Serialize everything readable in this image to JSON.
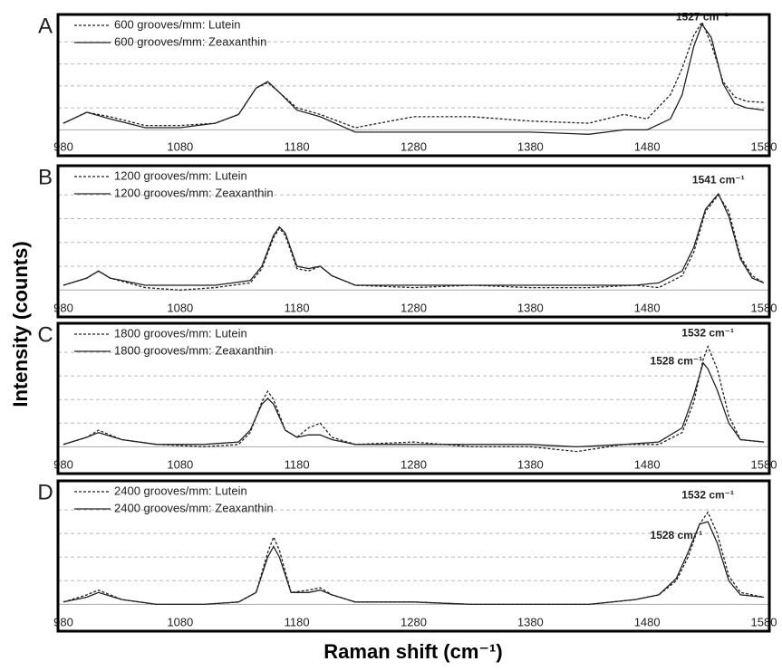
{
  "ylabel": "Intensity (counts)",
  "xlabel": "Raman shift (cm⁻¹)",
  "chart_data": [
    {
      "type": "line",
      "panel": "A",
      "xlim": [
        980,
        1580
      ],
      "ylim": [
        -0.6,
        5
      ],
      "xticks": [
        980,
        1080,
        1180,
        1280,
        1380,
        1480,
        1580
      ],
      "ygrid": [
        1,
        2,
        3,
        4
      ],
      "x": [
        980,
        1000,
        1020,
        1050,
        1080,
        1110,
        1130,
        1145,
        1155,
        1165,
        1180,
        1200,
        1230,
        1280,
        1330,
        1380,
        1430,
        1460,
        1480,
        1500,
        1510,
        1520,
        1527,
        1535,
        1545,
        1555,
        1565,
        1580
      ],
      "series": [
        {
          "name": "600 grooves/mm: Lutein",
          "color": "#222",
          "dash": true,
          "values": [
            0.3,
            0.8,
            0.6,
            0.2,
            0.2,
            0.3,
            0.7,
            1.9,
            2.15,
            1.7,
            1.0,
            0.7,
            0.1,
            0.6,
            0.6,
            0.4,
            0.3,
            0.7,
            0.5,
            1.6,
            2.8,
            4.3,
            4.9,
            3.9,
            2.2,
            1.5,
            1.3,
            1.25
          ]
        },
        {
          "name": "600 grooves/mm: Zeaxanthin",
          "color": "#222",
          "dash": false,
          "values": [
            0.3,
            0.8,
            0.5,
            0.1,
            0.1,
            0.3,
            0.7,
            1.9,
            2.2,
            1.7,
            0.9,
            0.6,
            -0.1,
            -0.1,
            -0.1,
            -0.1,
            -0.2,
            0.0,
            0.0,
            0.5,
            1.6,
            3.8,
            4.8,
            4.2,
            2.1,
            1.2,
            1.0,
            0.9
          ]
        }
      ],
      "annotations": [
        {
          "text": "1527 cm⁻¹",
          "x": 1527,
          "y": 5.1
        }
      ]
    },
    {
      "type": "line",
      "panel": "B",
      "xlim": [
        980,
        1580
      ],
      "ylim": [
        -0.6,
        5
      ],
      "xticks": [
        980,
        1080,
        1180,
        1280,
        1380,
        1480,
        1580
      ],
      "ygrid": [
        1,
        2,
        3,
        4
      ],
      "x": [
        980,
        1000,
        1010,
        1020,
        1050,
        1080,
        1110,
        1140,
        1150,
        1160,
        1165,
        1170,
        1180,
        1190,
        1200,
        1210,
        1230,
        1280,
        1330,
        1380,
        1430,
        1470,
        1490,
        1510,
        1520,
        1530,
        1541,
        1550,
        1560,
        1570,
        1580
      ],
      "series": [
        {
          "name": "1200 grooves/mm: Lutein",
          "color": "#222",
          "dash": true,
          "values": [
            0.2,
            0.5,
            0.8,
            0.5,
            0.1,
            0.0,
            0.1,
            0.3,
            0.9,
            2.2,
            2.6,
            2.3,
            0.9,
            0.8,
            1.0,
            0.6,
            0.2,
            0.1,
            0.2,
            0.1,
            0.1,
            0.2,
            0.1,
            0.6,
            1.6,
            3.3,
            4.0,
            3.3,
            1.4,
            0.6,
            0.3
          ]
        },
        {
          "name": "1200 grooves/mm: Zeaxanthin",
          "color": "#222",
          "dash": false,
          "values": [
            0.2,
            0.5,
            0.8,
            0.5,
            0.2,
            0.2,
            0.2,
            0.4,
            1.0,
            2.3,
            2.65,
            2.4,
            1.0,
            0.9,
            1.0,
            0.6,
            0.2,
            0.2,
            0.2,
            0.2,
            0.2,
            0.2,
            0.3,
            0.8,
            1.8,
            3.4,
            4.05,
            3.1,
            1.3,
            0.5,
            0.3
          ]
        }
      ],
      "annotations": [
        {
          "text": "1541 cm⁻¹",
          "x": 1541,
          "y": 4.6
        }
      ]
    },
    {
      "type": "line",
      "panel": "C",
      "xlim": [
        980,
        1580
      ],
      "ylim": [
        -0.6,
        5
      ],
      "xticks": [
        980,
        1080,
        1180,
        1280,
        1380,
        1480,
        1580
      ],
      "ygrid": [
        1,
        2,
        3,
        4
      ],
      "x": [
        980,
        1000,
        1010,
        1030,
        1060,
        1100,
        1130,
        1140,
        1150,
        1155,
        1160,
        1170,
        1180,
        1190,
        1200,
        1210,
        1230,
        1280,
        1330,
        1380,
        1420,
        1460,
        1490,
        1510,
        1520,
        1528,
        1532,
        1540,
        1550,
        1560,
        1580
      ],
      "series": [
        {
          "name": "1800 grooves/mm: Lutein",
          "color": "#222",
          "dash": true,
          "values": [
            0.1,
            0.4,
            0.7,
            0.3,
            0.1,
            0.0,
            0.1,
            0.6,
            1.9,
            2.35,
            2.0,
            0.7,
            0.4,
            0.8,
            1.0,
            0.4,
            0.1,
            0.2,
            0.0,
            0.0,
            -0.2,
            0.1,
            0.1,
            0.6,
            1.9,
            3.7,
            4.25,
            3.3,
            1.3,
            0.3,
            0.2
          ]
        },
        {
          "name": "1800 grooves/mm: Zeaxanthin",
          "color": "#222",
          "dash": false,
          "values": [
            0.1,
            0.4,
            0.6,
            0.3,
            0.1,
            0.1,
            0.2,
            0.7,
            1.8,
            2.05,
            1.8,
            0.7,
            0.4,
            0.5,
            0.5,
            0.3,
            0.1,
            0.1,
            0.1,
            0.1,
            0.0,
            0.1,
            0.2,
            0.8,
            2.2,
            3.55,
            3.3,
            2.4,
            1.0,
            0.3,
            0.2
          ]
        }
      ],
      "annotations": [
        {
          "text": "1532 cm⁻¹",
          "x": 1532,
          "y": 4.8
        },
        {
          "text": "1528 cm⁻¹",
          "x": 1505,
          "y": 3.6
        }
      ]
    },
    {
      "type": "line",
      "panel": "D",
      "xlim": [
        980,
        1580
      ],
      "ylim": [
        -0.6,
        5
      ],
      "xticks": [
        980,
        1080,
        1180,
        1280,
        1380,
        1480,
        1580
      ],
      "ygrid": [
        1,
        2,
        3,
        4
      ],
      "x": [
        980,
        1000,
        1010,
        1030,
        1060,
        1100,
        1130,
        1145,
        1155,
        1160,
        1165,
        1175,
        1190,
        1200,
        1210,
        1230,
        1280,
        1330,
        1380,
        1430,
        1470,
        1490,
        1505,
        1515,
        1525,
        1532,
        1540,
        1550,
        1560,
        1580
      ],
      "series": [
        {
          "name": "2400 grooves/mm: Lutein",
          "color": "#222",
          "dash": true,
          "values": [
            0.1,
            0.4,
            0.6,
            0.2,
            0.0,
            0.0,
            0.1,
            0.5,
            2.2,
            2.85,
            2.3,
            0.5,
            0.6,
            0.7,
            0.4,
            0.1,
            0.1,
            0.0,
            0.0,
            0.0,
            0.2,
            0.4,
            1.0,
            2.0,
            3.4,
            3.9,
            3.0,
            1.2,
            0.5,
            0.3
          ]
        },
        {
          "name": "2400 grooves/mm: Zeaxanthin",
          "color": "#222",
          "dash": false,
          "values": [
            0.1,
            0.3,
            0.5,
            0.2,
            0.0,
            0.0,
            0.1,
            0.5,
            2.0,
            2.45,
            2.0,
            0.5,
            0.5,
            0.6,
            0.4,
            0.1,
            0.1,
            0.0,
            0.0,
            0.0,
            0.2,
            0.4,
            1.1,
            2.2,
            3.4,
            3.5,
            2.6,
            1.0,
            0.4,
            0.3
          ]
        }
      ],
      "annotations": [
        {
          "text": "1532 cm⁻¹",
          "x": 1532,
          "y": 4.6
        },
        {
          "text": "1528 cm⁻¹",
          "x": 1505,
          "y": 2.9
        }
      ]
    }
  ]
}
